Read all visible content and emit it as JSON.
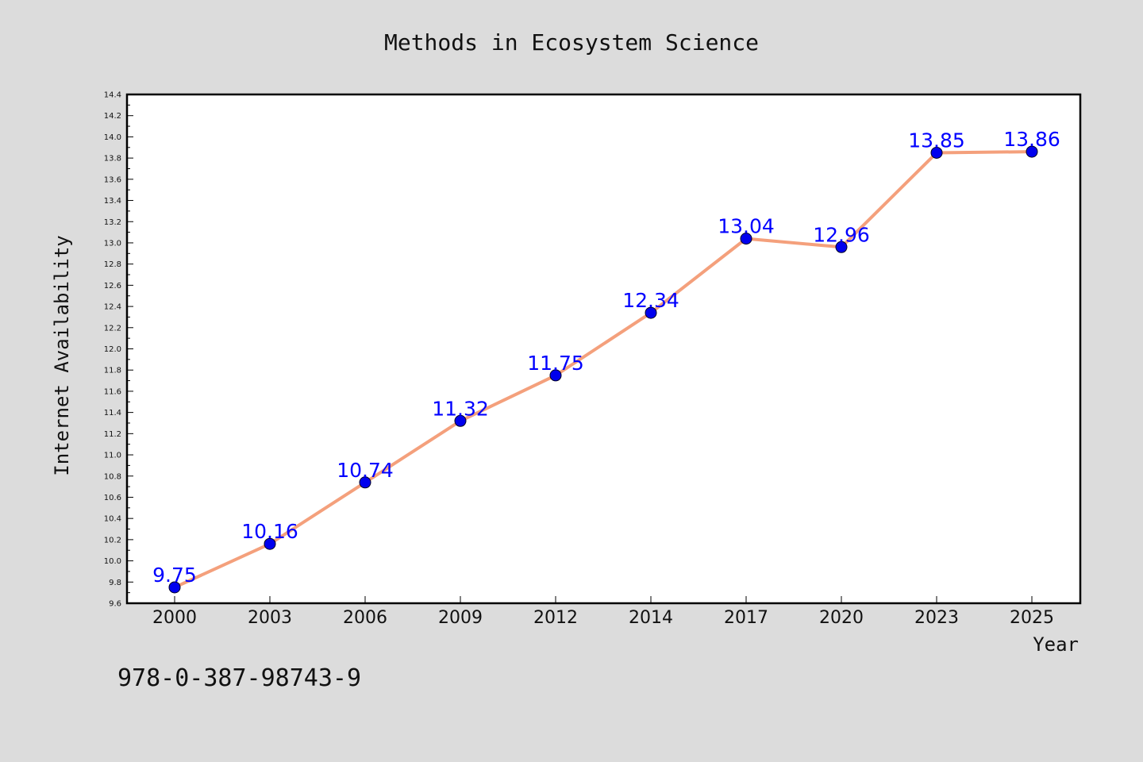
{
  "chart_data": {
    "type": "line",
    "title": "Methods in Ecosystem Science",
    "xlabel": "Year",
    "ylabel": "Internet Availability",
    "categories": [
      "2000",
      "2003",
      "2006",
      "2009",
      "2012",
      "2014",
      "2017",
      "2020",
      "2023",
      "2025"
    ],
    "series": [
      {
        "values": [
          9.75,
          10.16,
          10.74,
          11.32,
          11.75,
          12.34,
          13.04,
          12.96,
          13.85,
          13.86
        ],
        "labels": [
          "9.75",
          "10.16",
          "10.74",
          "11.32",
          "11.75",
          "12.34",
          "13.04",
          "12.96",
          "13.85",
          "13.86"
        ]
      }
    ],
    "ylim": [
      9.6,
      14.4
    ],
    "ytick_step": 0.2,
    "yticks": [
      "9.6",
      "9.8",
      "10.0",
      "10.2",
      "10.4",
      "10.6",
      "10.8",
      "11.0",
      "11.2",
      "11.4",
      "11.6",
      "11.8",
      "12.0",
      "12.2",
      "12.4",
      "12.6",
      "12.8",
      "13.0",
      "13.2",
      "13.4",
      "13.6",
      "13.8",
      "14.0",
      "14.2",
      "14.4"
    ],
    "grid": false,
    "legend": "none",
    "data_labels": true
  },
  "footer": {
    "isbn": "978-0-387-98743-9"
  },
  "colors": {
    "background": "#dcdcdc",
    "plot_background": "#ffffff",
    "line": "#f4a07c",
    "marker": "#0000ee",
    "label": "#0000ff"
  }
}
